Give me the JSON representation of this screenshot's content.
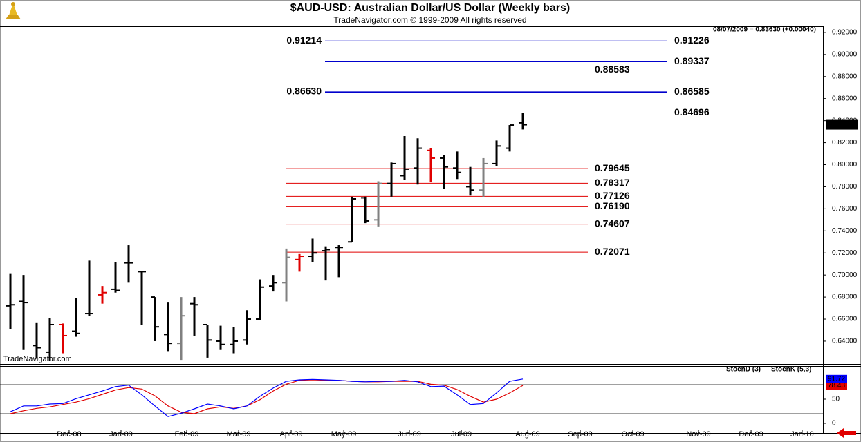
{
  "chart_data": [
    {
      "type": "ohlc",
      "title": "$AUD-USD:  Australian Dollar/US Dollar  (Weekly bars)",
      "subtitle": "TradeNavigator.com © 1999-2009 All rights reserved",
      "info": "08/07/2009 = 0.83630 (+0.00040)",
      "watermark": "TradeNavigator.com",
      "x": [
        0,
        1,
        2,
        3,
        4,
        5,
        6,
        7,
        8,
        9,
        10,
        11,
        12,
        13,
        14,
        15,
        16,
        17,
        18,
        19,
        20,
        21,
        22,
        23,
        24,
        25,
        26,
        27,
        28,
        29,
        30,
        31,
        32,
        33,
        34,
        35,
        36,
        37,
        38,
        39
      ],
      "opens": [
        0.672,
        0.676,
        0.636,
        0.63,
        0.655,
        0.649,
        0.665,
        0.682,
        0.687,
        0.711,
        0.703,
        0.68,
        0.646,
        0.638,
        0.674,
        0.655,
        0.64,
        0.637,
        0.641,
        0.66,
        0.69,
        0.693,
        0.714,
        0.717,
        0.722,
        0.725,
        0.73,
        0.77,
        0.75,
        0.783,
        0.79,
        0.797,
        0.813,
        0.806,
        0.797,
        0.78,
        0.777,
        0.801,
        0.815,
        0.838
      ],
      "highs": [
        0.701,
        0.7,
        0.657,
        0.661,
        0.656,
        0.679,
        0.713,
        0.69,
        0.712,
        0.727,
        0.703,
        0.68,
        0.675,
        0.68,
        0.68,
        0.655,
        0.654,
        0.653,
        0.668,
        0.696,
        0.7,
        0.724,
        0.719,
        0.733,
        0.726,
        0.727,
        0.771,
        0.771,
        0.785,
        0.802,
        0.826,
        0.824,
        0.815,
        0.809,
        0.812,
        0.798,
        0.806,
        0.822,
        0.836,
        0.847
      ],
      "lows": [
        0.651,
        0.632,
        0.624,
        0.622,
        0.629,
        0.644,
        0.663,
        0.674,
        0.684,
        0.693,
        0.655,
        0.64,
        0.631,
        0.623,
        0.645,
        0.625,
        0.632,
        0.629,
        0.637,
        0.659,
        0.685,
        0.676,
        0.703,
        0.712,
        0.695,
        0.698,
        0.73,
        0.747,
        0.744,
        0.771,
        0.786,
        0.782,
        0.784,
        0.778,
        0.787,
        0.772,
        0.771,
        0.799,
        0.812,
        0.832
      ],
      "closes": [
        0.673,
        0.675,
        0.634,
        0.655,
        0.645,
        0.647,
        0.665,
        0.684,
        0.686,
        0.711,
        0.703,
        0.653,
        0.638,
        0.663,
        0.673,
        0.641,
        0.637,
        0.64,
        0.66,
        0.689,
        0.693,
        0.716,
        0.717,
        0.72,
        0.723,
        0.725,
        0.769,
        0.749,
        0.783,
        0.801,
        0.796,
        0.815,
        0.806,
        0.798,
        0.793,
        0.777,
        0.801,
        0.817,
        0.836,
        0.8363
      ],
      "bar_colors": [
        "#000000",
        "#000000",
        "#000000",
        "#000000",
        "#e00000",
        "#000000",
        "#000000",
        "#e00000",
        "#000000",
        "#000000",
        "#000000",
        "#000000",
        "#000000",
        "#808080",
        "#000000",
        "#000000",
        "#000000",
        "#000000",
        "#000000",
        "#000000",
        "#000000",
        "#808080",
        "#e00000",
        "#000000",
        "#000000",
        "#000000",
        "#000000",
        "#000000",
        "#808080",
        "#000000",
        "#000000",
        "#000000",
        "#e00000",
        "#000000",
        "#000000",
        "#000000",
        "#808080",
        "#000000",
        "#000000",
        "#000000"
      ],
      "xlim": [
        -0.79,
        61.84
      ],
      "ylim": [
        0.6193,
        0.9256
      ],
      "yticks": [
        {
          "value": 0.64,
          "label": "0.64000"
        },
        {
          "value": 0.66,
          "label": "0.66000"
        },
        {
          "value": 0.68,
          "label": "0.68000"
        },
        {
          "value": 0.7,
          "label": "0.70000"
        },
        {
          "value": 0.72,
          "label": "0.72000"
        },
        {
          "value": 0.74,
          "label": "0.74000"
        },
        {
          "value": 0.76,
          "label": "0.76000"
        },
        {
          "value": 0.78,
          "label": "0.78000"
        },
        {
          "value": 0.8,
          "label": "0.80000"
        },
        {
          "value": 0.82,
          "label": "0.82000"
        },
        {
          "value": 0.84,
          "label": "0.84000"
        },
        {
          "value": 0.86,
          "label": "0.86000"
        },
        {
          "value": 0.88,
          "label": "0.88000"
        },
        {
          "value": 0.9,
          "label": "0.90000"
        },
        {
          "value": 0.92,
          "label": "0.92000"
        }
      ],
      "last_price": {
        "value": 0.8363,
        "label": "0.83630"
      },
      "levels": [
        {
          "kind": "projection",
          "color": "#0000cc",
          "value": 0.91226,
          "label": "0.91226",
          "left": {
            "value": 0.91214,
            "label": "0.91214"
          }
        },
        {
          "kind": "projection",
          "color": "#0000cc",
          "value": 0.89337,
          "label": "0.89337"
        },
        {
          "kind": "resistance",
          "color": "#e00000",
          "value": 0.88583,
          "label": "0.88583"
        },
        {
          "kind": "projection",
          "color": "#0000cc",
          "bold": true,
          "value": 0.86585,
          "label": "0.86585",
          "left": {
            "value": 0.8663,
            "label": "0.86630"
          }
        },
        {
          "kind": "projection",
          "color": "#0000cc",
          "value": 0.84696,
          "label": "0.84696"
        },
        {
          "kind": "retracement",
          "color": "#e00000",
          "value": 0.79645,
          "label": "0.79645"
        },
        {
          "kind": "retracement",
          "color": "#e00000",
          "value": 0.78317,
          "label": "0.78317"
        },
        {
          "kind": "retracement",
          "color": "#e00000",
          "value": 0.77126,
          "label": "0.77126"
        },
        {
          "kind": "retracement",
          "color": "#e00000",
          "value": 0.7619,
          "label": "0.76190"
        },
        {
          "kind": "retracement",
          "color": "#e00000",
          "value": 0.74607,
          "label": "0.74607"
        },
        {
          "kind": "retracement",
          "color": "#e00000",
          "value": 0.72071,
          "label": "0.72071"
        }
      ]
    },
    {
      "type": "line",
      "x": [
        0,
        1,
        2,
        3,
        4,
        5,
        6,
        7,
        8,
        9,
        10,
        11,
        12,
        13,
        14,
        15,
        16,
        17,
        18,
        19,
        20,
        21,
        22,
        23,
        24,
        25,
        26,
        27,
        28,
        29,
        30,
        31,
        32,
        33,
        34,
        35,
        36,
        37,
        38,
        39
      ],
      "series": [
        {
          "name": "StochD (3)",
          "color": "#e00000",
          "values": [
            20,
            26,
            31,
            34,
            39,
            44,
            51,
            60,
            69,
            74,
            71,
            57,
            36,
            23,
            20,
            30,
            34,
            31,
            36,
            49,
            67,
            81,
            89,
            90,
            89,
            89,
            87,
            86,
            86,
            87,
            87,
            87,
            81,
            79,
            70,
            56,
            44,
            50,
            63,
            78.43
          ]
        },
        {
          "name": "StochK (5,3)",
          "color": "#0000ff",
          "values": [
            24,
            36,
            36,
            40,
            41,
            51,
            59,
            67,
            76,
            79,
            59,
            36,
            14,
            21,
            30,
            40,
            36,
            30,
            36,
            56,
            73,
            87,
            90,
            91,
            90,
            89,
            87,
            86,
            87,
            87,
            89,
            86,
            76,
            77,
            59,
            39,
            41,
            63,
            87,
            91.72
          ]
        }
      ],
      "xlim": [
        -0.79,
        61.84
      ],
      "ylim": [
        -20,
        118.6
      ],
      "yticks": [
        0,
        50
      ],
      "reference_lines": [
        20,
        80
      ],
      "xticks": [
        {
          "value": 4.47,
          "label": "Dec-08"
        },
        {
          "value": 8.42,
          "label": "Jan-09"
        },
        {
          "value": 13.42,
          "label": "Feb-09"
        },
        {
          "value": 17.37,
          "label": "Mar-09"
        },
        {
          "value": 21.37,
          "label": "Apr-09"
        },
        {
          "value": 25.37,
          "label": "May-09"
        },
        {
          "value": 30.37,
          "label": "Jun-09"
        },
        {
          "value": 34.32,
          "label": "Jul-09"
        },
        {
          "value": 39.37,
          "label": "Aug-09"
        },
        {
          "value": 43.37,
          "label": "Sep-09"
        },
        {
          "value": 47.37,
          "label": "Oct-09"
        },
        {
          "value": 52.37,
          "label": "Nov-09"
        },
        {
          "value": 56.37,
          "label": "Dec-09"
        },
        {
          "value": 60.26,
          "label": "Jan-10"
        }
      ]
    }
  ]
}
